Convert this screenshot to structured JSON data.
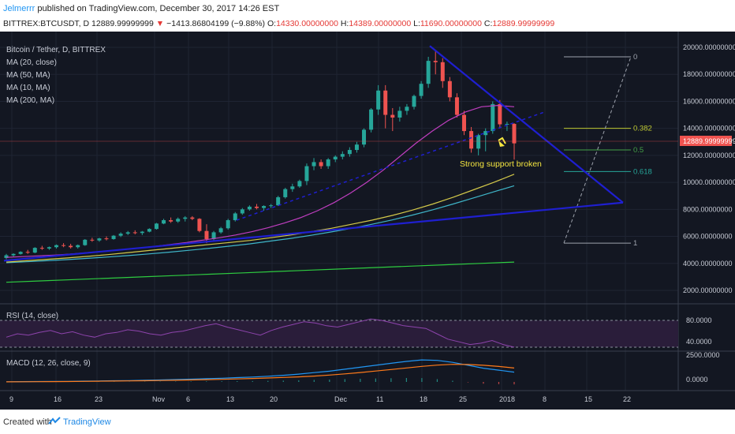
{
  "header": {
    "user": "Jelmerrr",
    "published": "published on TradingView.com, December 30, 2017 14:26 EST",
    "symbol": "BITTREX:BTCUSDT, D",
    "last": "12889.99999999",
    "change": "−1413.86804199 (−9.88%)",
    "open_label": "O:",
    "open": "14330.00000000",
    "high_label": "H:",
    "high": "14389.00000000",
    "low_label": "L:",
    "low": "11690.00000000",
    "close_label": "C:",
    "close": "12889.99999999"
  },
  "legend": {
    "title": "Bitcoin / Tether, D, BITTREX",
    "ma1": "MA (20, close)",
    "ma2": "MA (50, MA)",
    "ma3": "MA (10, MA)",
    "ma4": "MA (200, MA)"
  },
  "annotation": "Strong support broken",
  "price_badge": "12889.99999999",
  "fib": {
    "l0": "0",
    "l382": "0.382",
    "l05": "0.5",
    "l618": "0.618",
    "l1": "1"
  },
  "rsi": {
    "label": "RSI (14, close)",
    "t80": "80.0000",
    "t40": "40.0000"
  },
  "macd": {
    "label": "MACD (12, 26, close, 9)",
    "t2500": "2500.0000",
    "t0": "0.0000"
  },
  "footer": {
    "created": "Created with",
    "brand": "TradingView"
  },
  "colors": {
    "bg": "#131722",
    "up": "#26a69a",
    "down": "#ef5350",
    "ma20": "#c03ec0",
    "ma50": "#d4c94a",
    "ma10": "#3fb6c9",
    "ma200": "#2ecc40",
    "trend": "#1f1fd0"
  },
  "chart_data": {
    "type": "candlestick",
    "title": "Bitcoin / Tether, D, BITTREX",
    "price_axis": {
      "ticks": [
        "20000.00000000",
        "18000.00000000",
        "16000.00000000",
        "14000.00000000",
        "12000.00000000",
        "10000.00000000",
        "8000.00000000",
        "6000.00000000",
        "4000.00000000",
        "2000.00000000"
      ],
      "range": [
        800,
        21000
      ]
    },
    "time_axis": {
      "labels": [
        "9",
        "16",
        "23",
        "Nov",
        "6",
        "13",
        "20",
        "Dec",
        "11",
        "18",
        "25",
        "2018",
        "8",
        "15",
        "22"
      ]
    },
    "ohlc_daily_approx": [
      [
        4400,
        4700,
        4300,
        4600
      ],
      [
        4600,
        4750,
        4500,
        4700
      ],
      [
        4700,
        4900,
        4650,
        4850
      ],
      [
        4850,
        5000,
        4700,
        4800
      ],
      [
        4800,
        5200,
        4750,
        5150
      ],
      [
        5150,
        5300,
        5000,
        5100
      ],
      [
        5100,
        5250,
        5000,
        5200
      ],
      [
        5200,
        5400,
        5100,
        5350
      ],
      [
        5350,
        5500,
        5200,
        5300
      ],
      [
        5300,
        5450,
        5100,
        5200
      ],
      [
        5200,
        5400,
        5100,
        5350
      ],
      [
        5350,
        5800,
        5300,
        5750
      ],
      [
        5750,
        5900,
        5600,
        5700
      ],
      [
        5700,
        5900,
        5600,
        5850
      ],
      [
        5850,
        6000,
        5700,
        5800
      ],
      [
        5800,
        6100,
        5750,
        6050
      ],
      [
        6050,
        6300,
        5950,
        6200
      ],
      [
        6200,
        6400,
        6100,
        6300
      ],
      [
        6300,
        6450,
        6150,
        6250
      ],
      [
        6250,
        6400,
        6100,
        6350
      ],
      [
        6350,
        6600,
        6300,
        6550
      ],
      [
        6550,
        7000,
        6500,
        6950
      ],
      [
        6950,
        7300,
        6900,
        7200
      ],
      [
        7200,
        7400,
        7000,
        7100
      ],
      [
        7100,
        7400,
        7000,
        7300
      ],
      [
        7300,
        7500,
        7100,
        7400
      ],
      [
        7400,
        7500,
        7200,
        7300
      ],
      [
        7300,
        7350,
        6300,
        6400
      ],
      [
        6400,
        6900,
        5500,
        5800
      ],
      [
        5800,
        6400,
        5600,
        6300
      ],
      [
        6300,
        6700,
        6200,
        6600
      ],
      [
        6600,
        7300,
        6500,
        7200
      ],
      [
        7200,
        7800,
        7100,
        7700
      ],
      [
        7700,
        8100,
        7600,
        8000
      ],
      [
        8000,
        8300,
        7900,
        8200
      ],
      [
        8200,
        8400,
        8000,
        8100
      ],
      [
        8100,
        8300,
        7900,
        8250
      ],
      [
        8250,
        8400,
        8100,
        8300
      ],
      [
        8300,
        9000,
        8250,
        8900
      ],
      [
        8900,
        9600,
        8800,
        9500
      ],
      [
        9500,
        9900,
        9300,
        9700
      ],
      [
        9700,
        10200,
        9600,
        10100
      ],
      [
        10100,
        11400,
        9800,
        11200
      ],
      [
        11200,
        11800,
        10900,
        11500
      ],
      [
        11500,
        11700,
        11000,
        11200
      ],
      [
        11200,
        11800,
        11000,
        11700
      ],
      [
        11700,
        12000,
        11500,
        11900
      ],
      [
        11900,
        12300,
        11700,
        12100
      ],
      [
        12100,
        12600,
        11900,
        12400
      ],
      [
        12400,
        13000,
        12200,
        12800
      ],
      [
        12800,
        14000,
        12600,
        13900
      ],
      [
        13900,
        15500,
        13700,
        15400
      ],
      [
        15400,
        17200,
        15000,
        16800
      ],
      [
        16800,
        17200,
        14000,
        15000
      ],
      [
        15000,
        15500,
        13800,
        14800
      ],
      [
        14800,
        15600,
        14500,
        15300
      ],
      [
        15300,
        15800,
        15000,
        15600
      ],
      [
        15600,
        16500,
        15400,
        16400
      ],
      [
        16400,
        17500,
        16200,
        17300
      ],
      [
        17300,
        19300,
        17000,
        19000
      ],
      [
        19000,
        19800,
        18000,
        18900
      ],
      [
        18900,
        19200,
        17000,
        17500
      ],
      [
        17500,
        17800,
        16000,
        16300
      ],
      [
        16300,
        16600,
        14800,
        15000
      ],
      [
        15000,
        15300,
        13500,
        13800
      ],
      [
        13800,
        14100,
        12200,
        12500
      ],
      [
        12500,
        13600,
        12000,
        13500
      ],
      [
        13500,
        14000,
        12300,
        13800
      ],
      [
        13800,
        16000,
        13600,
        15800
      ],
      [
        15800,
        16100,
        14000,
        14300
      ],
      [
        14300,
        14500,
        13800,
        14330
      ],
      [
        14330,
        14389,
        11690,
        12890
      ]
    ],
    "ma20_approx": [
      4450,
      4500,
      4560,
      4620,
      4700,
      4800,
      4900,
      5000,
      5120,
      5250,
      5400,
      5550,
      5720,
      5900,
      6100,
      6350,
      6650,
      7000,
      7400,
      7900,
      8500,
      9200,
      10000,
      10900,
      11900,
      12900,
      13800,
      14600,
      15200,
      15600,
      15700,
      15600
    ],
    "ma50_approx": [
      4100,
      4200,
      4300,
      4400,
      4520,
      4650,
      4800,
      4950,
      5100,
      5250,
      5400,
      5550,
      5700,
      5900,
      6100,
      6350,
      6600,
      6900,
      7200,
      7550,
      7950,
      8400,
      8900,
      9450,
      10000,
      10600
    ],
    "ma10_approx": [
      4050,
      4120,
      4200,
      4280,
      4370,
      4470,
      4580,
      4700,
      4830,
      4970,
      5120,
      5280,
      5450,
      5650,
      5850,
      6080,
      6330,
      6600,
      6900,
      7220,
      7580,
      7970,
      8400,
      8850,
      9300,
      9750
    ],
    "ma200_approx": [
      2600,
      2700,
      2800,
      2900,
      3000,
      3100,
      3200,
      3300,
      3400,
      3500,
      3600,
      3700,
      3800,
      3900,
      4000,
      4100
    ],
    "rsi": {
      "levels": [
        80,
        40
      ]
    },
    "fib_levels": {
      "0": 19300,
      "0.382": 14000,
      "0.5": 12400,
      "0.618": 10800,
      "1": 5500
    }
  }
}
